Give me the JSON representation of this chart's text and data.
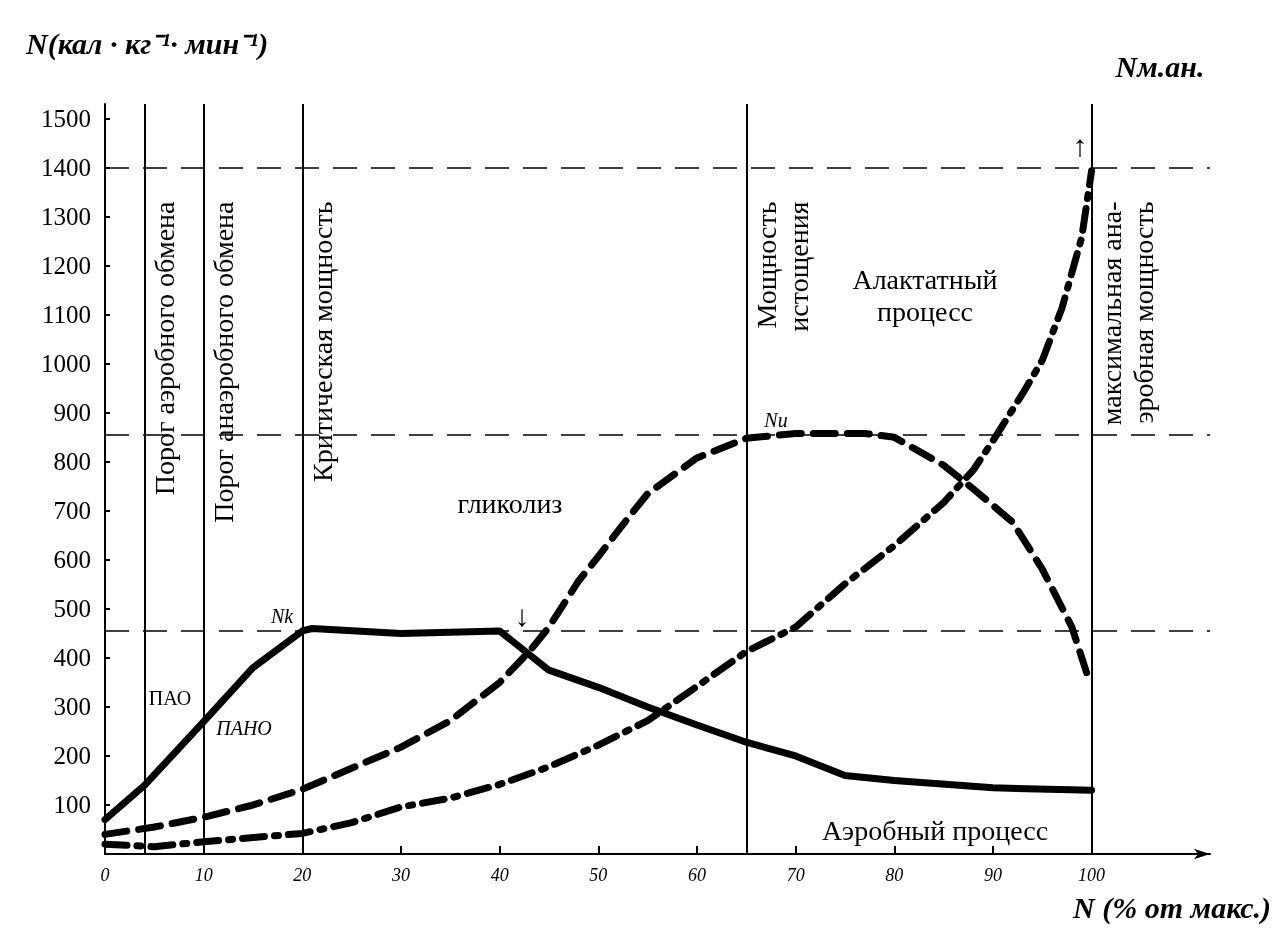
{
  "chart_data": {
    "type": "line",
    "ylabel": "N(кал · кг⁻¹· мин⁻¹)",
    "xlabel": "N (% от макс.)",
    "xlim": [
      0,
      112
    ],
    "xticks": [
      0,
      10,
      20,
      30,
      40,
      50,
      60,
      70,
      80,
      90,
      100
    ],
    "ylim": [
      0,
      1530
    ],
    "yticks": [
      100,
      200,
      300,
      400,
      500,
      600,
      700,
      800,
      900,
      1000,
      1100,
      1200,
      1300,
      1400,
      1500
    ],
    "grid": false,
    "marker": "none",
    "series": [
      {
        "color": "#000000",
        "line_style": "solid",
        "x": [
          0,
          4,
          10,
          15,
          20,
          21,
          30,
          40,
          45,
          50,
          55,
          60,
          65,
          70,
          75,
          80,
          90,
          100
        ],
        "values": [
          70,
          140,
          270,
          380,
          455,
          460,
          450,
          455,
          375,
          340,
          300,
          263,
          228,
          200,
          160,
          150,
          135,
          130
        ]
      },
      {
        "color": "#000000",
        "line_style": "dashed",
        "x": [
          0,
          5,
          10,
          15,
          20,
          30,
          35,
          40,
          43,
          45,
          48,
          50,
          53,
          55,
          60,
          65,
          70,
          77,
          80,
          85,
          88,
          92,
          95,
          98,
          99.7
        ],
        "values": [
          40,
          55,
          75,
          100,
          132,
          218,
          272,
          350,
          413,
          463,
          557,
          607,
          685,
          735,
          808,
          848,
          858,
          858,
          850,
          793,
          745,
          677,
          581,
          463,
          357
        ]
      },
      {
        "color": "#000000",
        "line_style": "dashdot",
        "x": [
          0,
          5,
          10,
          20,
          25,
          30,
          35,
          40,
          45,
          50,
          55,
          60,
          65,
          70,
          75,
          80,
          85,
          88,
          90,
          93,
          95,
          97,
          99,
          100
        ],
        "values": [
          20,
          15,
          25,
          42,
          64,
          96,
          114,
          142,
          178,
          222,
          272,
          342,
          413,
          463,
          551,
          629,
          717,
          783,
          843,
          939,
          1007,
          1114,
          1258,
          1394
        ]
      }
    ],
    "ref_lines": [
      {
        "axis": "x",
        "value": 4,
        "label": "Порог аэробного обмена",
        "line_style": "solid",
        "color": "#000000"
      },
      {
        "axis": "x",
        "value": 10,
        "label": "Порог анаэробного обмена",
        "line_style": "solid",
        "color": "#000000"
      },
      {
        "axis": "x",
        "value": 20,
        "label": "Критическая мощность",
        "line_style": "solid",
        "color": "#000000"
      },
      {
        "axis": "x",
        "value": 65,
        "label": "Мощность\nистощения",
        "line_style": "solid",
        "color": "#000000"
      },
      {
        "axis": "x",
        "value": 100,
        "label": "максимальная ана-\nэробная мощность",
        "line_style": "solid",
        "color": "#000000"
      },
      {
        "axis": "y",
        "value": 1400,
        "line_style": "dashed",
        "color": "#000000"
      },
      {
        "axis": "y",
        "value": 855,
        "line_style": "dashed",
        "color": "#000000"
      },
      {
        "axis": "y",
        "value": 455,
        "line_style": "dashed",
        "color": "#000000"
      }
    ],
    "annotations": [
      "Nм.ан.",
      "ПАО",
      "ПАНО",
      "Nk",
      "Nu",
      "гликолиз",
      "Алактатный\nпроцесс",
      "Аэробный процесс",
      "↓",
      "↑"
    ]
  }
}
